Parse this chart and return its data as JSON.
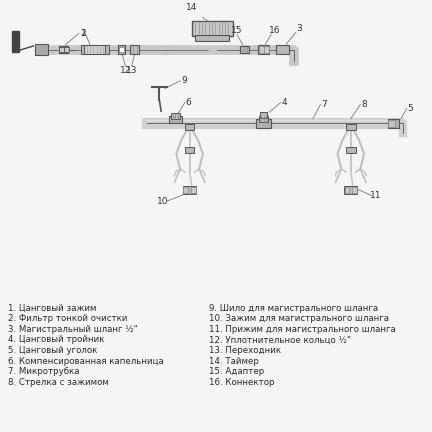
{
  "background_color": "#f5f5f5",
  "legend_left": [
    "1. Цанговый зажим",
    "2. Фильтр тонкой очистки",
    "3. Магистральный шланг ½\"",
    "4. Цанговый тройник",
    "5. Цанговый уголок",
    "6. Компенсированная капельница",
    "7. Микротрубка",
    "8. Стрелка с зажимом"
  ],
  "legend_right": [
    "9. Шило для магистрального шланга",
    "10. Зажим для магистрального шланга",
    "11. Прижим для магистрального шланга",
    "12. Уплотнительное кольцо ½\"",
    "13. Переходник",
    "14. Таймер",
    "15. Адаптер",
    "16. Коннектор"
  ],
  "text_color": "#2a2a2a",
  "label_color": "#333333",
  "pipe_color": "#c8c8c8",
  "fitting_color": "#b0b0b0",
  "dark_color": "#555555",
  "mid_color": "#909090",
  "line_color": "#777777",
  "font_size": 6.2,
  "wall_color": "#444444"
}
